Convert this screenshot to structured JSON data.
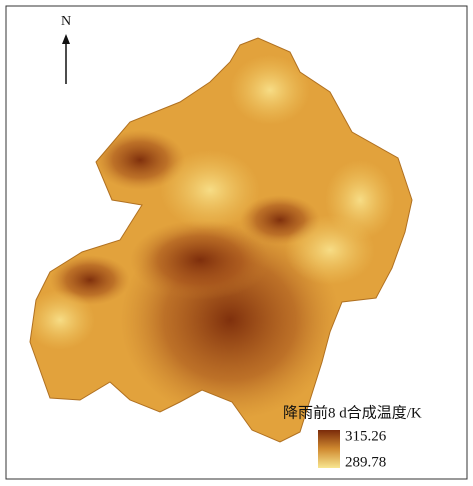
{
  "north_label": "N",
  "legend": {
    "title": "降雨前8  d合成温度/K",
    "max": 315.26,
    "min": 289.78
  }
}
